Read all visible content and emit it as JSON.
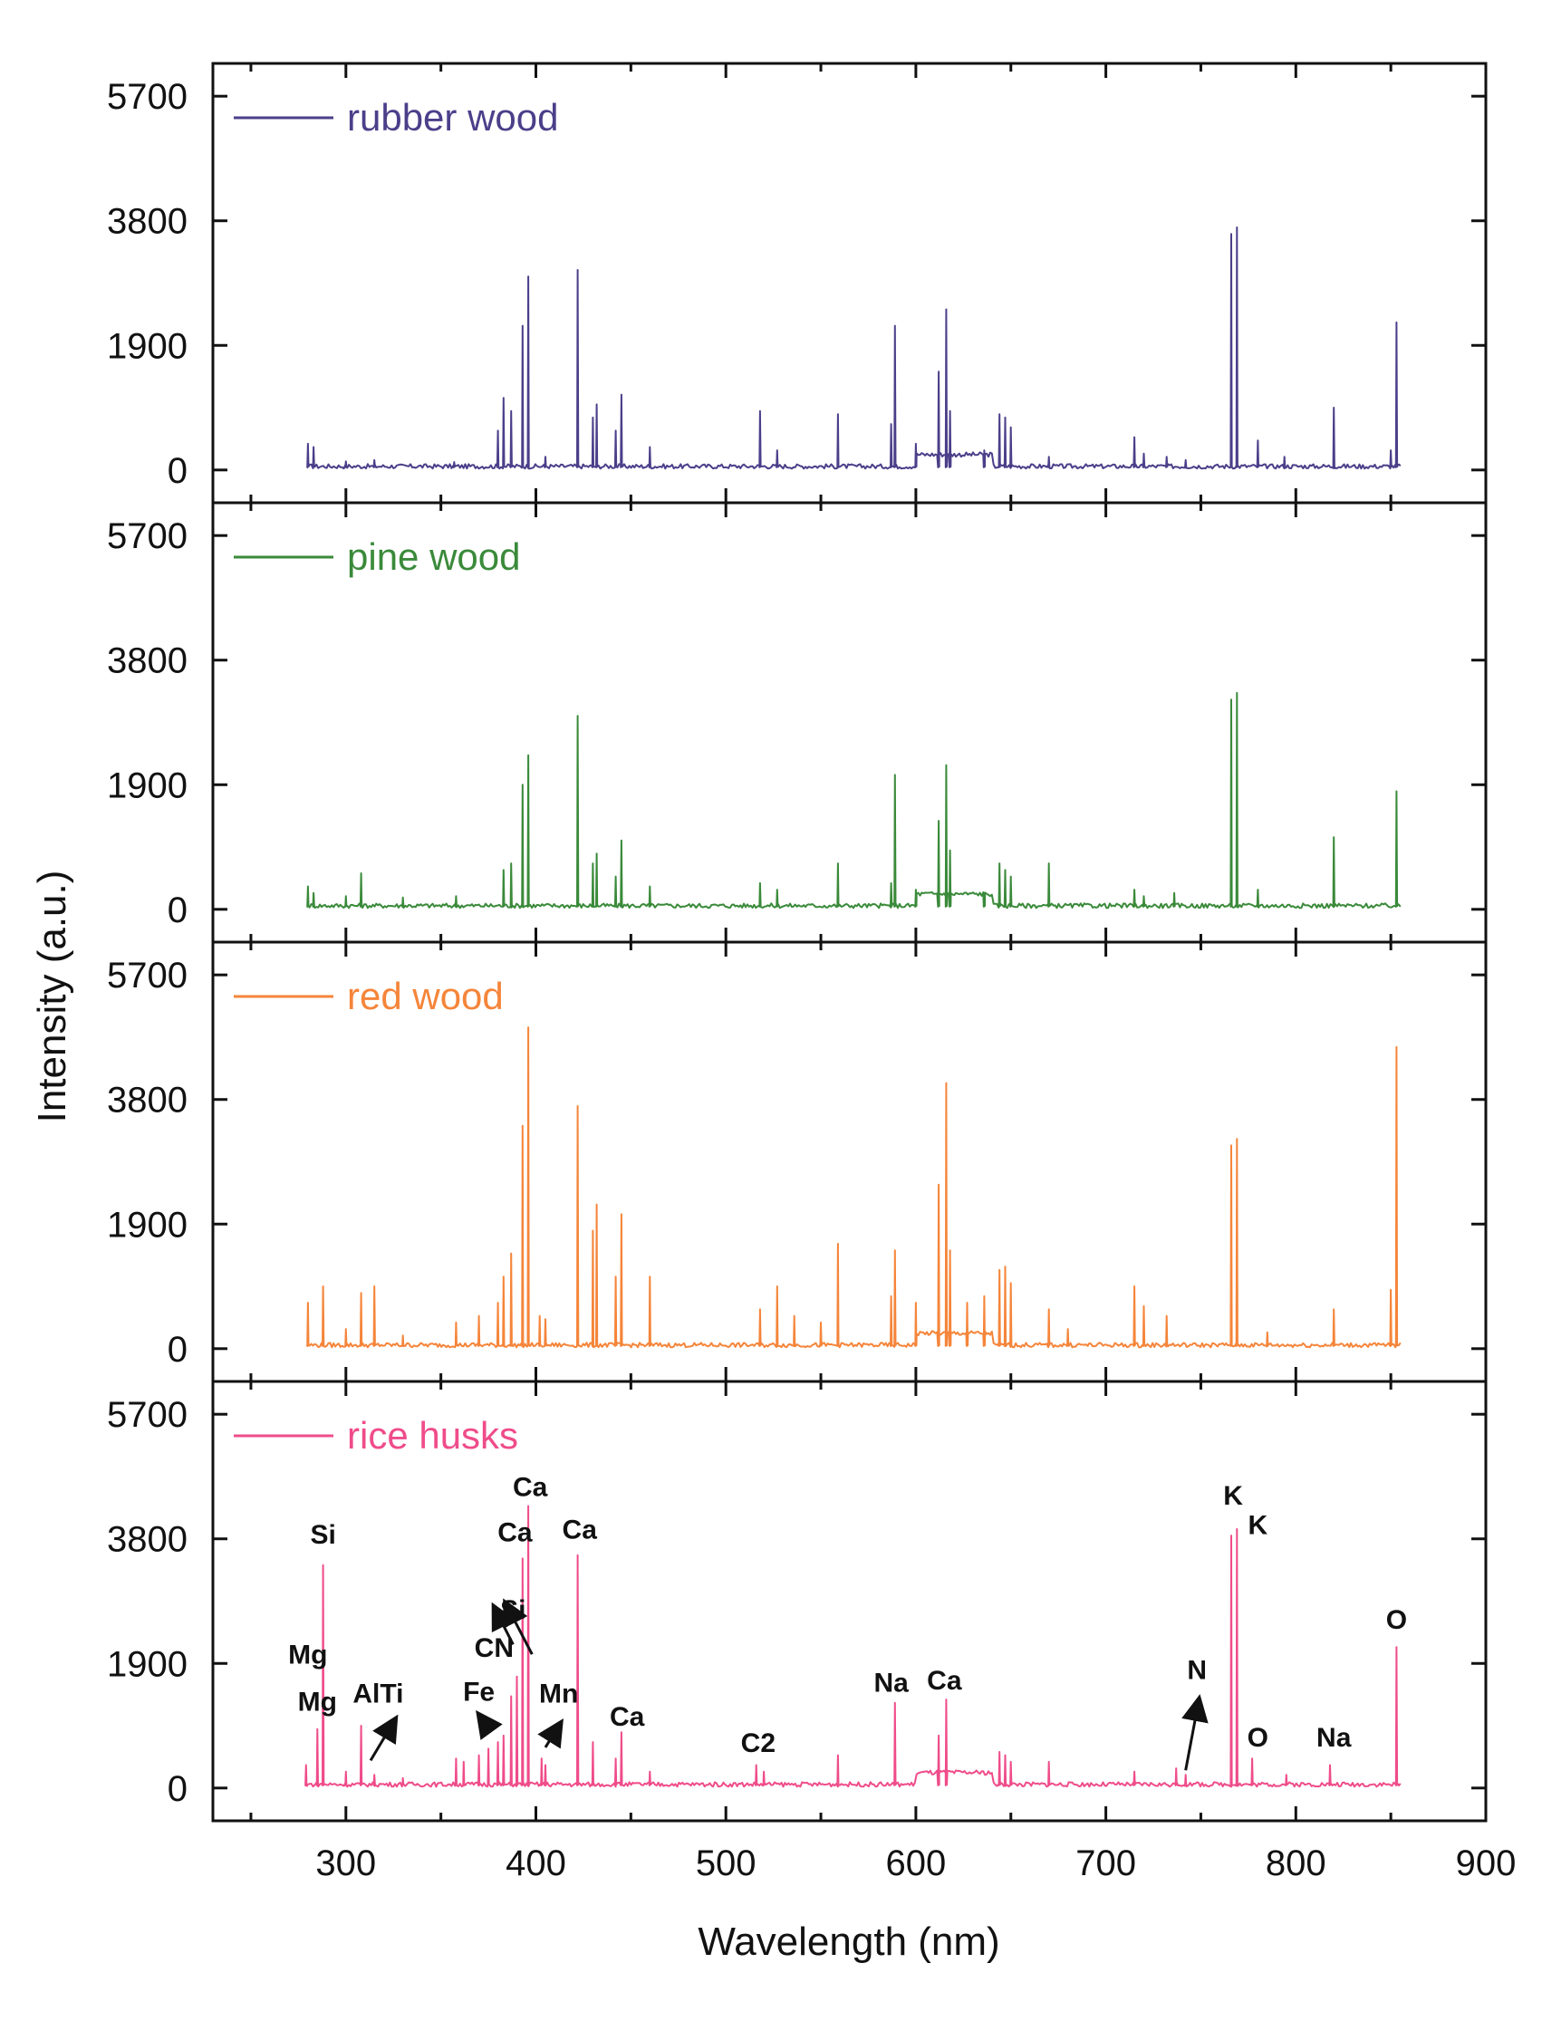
{
  "chart_data": {
    "type": "line",
    "xlabel": "Wavelength (nm)",
    "ylabel": "Intensity (a.u.)",
    "xlim": [
      230,
      900
    ],
    "ylim": [
      -500,
      6200
    ],
    "xticks": [
      "300",
      "400",
      "500",
      "600",
      "700",
      "800",
      "900"
    ],
    "xtick_values": [
      300,
      400,
      500,
      600,
      700,
      800,
      900
    ],
    "yticks": [
      "0",
      "1900",
      "3800",
      "5700"
    ],
    "ytick_values": [
      0,
      1900,
      3800,
      5700
    ],
    "x_range": [
      280,
      855
    ],
    "panels": [
      {
        "name": "rubber wood",
        "color": "#4b3f8a",
        "peaks": [
          [
            280,
            400
          ],
          [
            283,
            350
          ],
          [
            300,
            130
          ],
          [
            315,
            150
          ],
          [
            357,
            120
          ],
          [
            380,
            600
          ],
          [
            383,
            1100
          ],
          [
            387,
            900
          ],
          [
            393,
            2200
          ],
          [
            396,
            2950
          ],
          [
            405,
            200
          ],
          [
            422,
            3050
          ],
          [
            430,
            800
          ],
          [
            432,
            1000
          ],
          [
            442,
            600
          ],
          [
            445,
            1150
          ],
          [
            460,
            350
          ],
          [
            518,
            900
          ],
          [
            527,
            300
          ],
          [
            559,
            850
          ],
          [
            587,
            700
          ],
          [
            589,
            2200
          ],
          [
            600,
            400
          ],
          [
            612,
            1500
          ],
          [
            616,
            2450
          ],
          [
            618,
            900
          ],
          [
            636,
            300
          ],
          [
            644,
            850
          ],
          [
            647,
            800
          ],
          [
            650,
            650
          ],
          [
            670,
            200
          ],
          [
            715,
            500
          ],
          [
            720,
            250
          ],
          [
            732,
            200
          ],
          [
            742,
            150
          ],
          [
            766,
            3600
          ],
          [
            769,
            3700
          ],
          [
            780,
            450
          ],
          [
            794,
            200
          ],
          [
            820,
            950
          ],
          [
            850,
            300
          ],
          [
            853,
            2250
          ]
        ]
      },
      {
        "name": "pine wood",
        "color": "#3a8a3a",
        "peaks": [
          [
            280,
            350
          ],
          [
            283,
            250
          ],
          [
            300,
            200
          ],
          [
            308,
            550
          ],
          [
            330,
            180
          ],
          [
            358,
            200
          ],
          [
            383,
            600
          ],
          [
            387,
            700
          ],
          [
            393,
            1900
          ],
          [
            396,
            2350
          ],
          [
            422,
            2950
          ],
          [
            430,
            700
          ],
          [
            432,
            850
          ],
          [
            442,
            500
          ],
          [
            445,
            1050
          ],
          [
            460,
            350
          ],
          [
            518,
            400
          ],
          [
            527,
            300
          ],
          [
            559,
            700
          ],
          [
            587,
            400
          ],
          [
            589,
            2050
          ],
          [
            600,
            300
          ],
          [
            612,
            1350
          ],
          [
            616,
            2200
          ],
          [
            618,
            900
          ],
          [
            636,
            250
          ],
          [
            644,
            700
          ],
          [
            647,
            600
          ],
          [
            650,
            500
          ],
          [
            670,
            700
          ],
          [
            715,
            300
          ],
          [
            720,
            200
          ],
          [
            736,
            250
          ],
          [
            766,
            3200
          ],
          [
            769,
            3300
          ],
          [
            780,
            300
          ],
          [
            820,
            1100
          ],
          [
            853,
            1800
          ]
        ]
      },
      {
        "name": "red wood",
        "color": "#f5853a",
        "peaks": [
          [
            280,
            700
          ],
          [
            288,
            950
          ],
          [
            300,
            300
          ],
          [
            308,
            850
          ],
          [
            315,
            950
          ],
          [
            330,
            200
          ],
          [
            358,
            400
          ],
          [
            370,
            500
          ],
          [
            380,
            700
          ],
          [
            383,
            1100
          ],
          [
            387,
            1450
          ],
          [
            393,
            3400
          ],
          [
            396,
            4900
          ],
          [
            402,
            500
          ],
          [
            405,
            450
          ],
          [
            422,
            3700
          ],
          [
            430,
            1800
          ],
          [
            432,
            2200
          ],
          [
            442,
            1100
          ],
          [
            445,
            2050
          ],
          [
            460,
            1100
          ],
          [
            518,
            600
          ],
          [
            527,
            950
          ],
          [
            536,
            500
          ],
          [
            550,
            400
          ],
          [
            559,
            1600
          ],
          [
            587,
            800
          ],
          [
            589,
            1500
          ],
          [
            600,
            700
          ],
          [
            612,
            2500
          ],
          [
            616,
            4050
          ],
          [
            618,
            1500
          ],
          [
            627,
            700
          ],
          [
            636,
            800
          ],
          [
            644,
            1200
          ],
          [
            647,
            1250
          ],
          [
            650,
            1000
          ],
          [
            670,
            600
          ],
          [
            680,
            300
          ],
          [
            715,
            950
          ],
          [
            720,
            650
          ],
          [
            732,
            500
          ],
          [
            766,
            3100
          ],
          [
            769,
            3200
          ],
          [
            785,
            250
          ],
          [
            820,
            600
          ],
          [
            850,
            900
          ],
          [
            853,
            4600
          ]
        ]
      },
      {
        "name": "rice husks",
        "color": "#ef4c8a",
        "peaks": [
          [
            279,
            350
          ],
          [
            285,
            900
          ],
          [
            288,
            3400
          ],
          [
            300,
            250
          ],
          [
            308,
            950
          ],
          [
            315,
            200
          ],
          [
            330,
            150
          ],
          [
            358,
            450
          ],
          [
            362,
            400
          ],
          [
            370,
            500
          ],
          [
            375,
            600
          ],
          [
            380,
            700
          ],
          [
            383,
            800
          ],
          [
            387,
            1400
          ],
          [
            390,
            1700
          ],
          [
            393,
            3500
          ],
          [
            396,
            4300
          ],
          [
            403,
            450
          ],
          [
            405,
            350
          ],
          [
            422,
            3550
          ],
          [
            430,
            700
          ],
          [
            442,
            450
          ],
          [
            445,
            850
          ],
          [
            460,
            250
          ],
          [
            516,
            350
          ],
          [
            520,
            250
          ],
          [
            559,
            500
          ],
          [
            589,
            1300
          ],
          [
            612,
            800
          ],
          [
            616,
            1350
          ],
          [
            644,
            550
          ],
          [
            647,
            500
          ],
          [
            650,
            400
          ],
          [
            670,
            400
          ],
          [
            715,
            250
          ],
          [
            737,
            300
          ],
          [
            742,
            200
          ],
          [
            766,
            3850
          ],
          [
            769,
            3950
          ],
          [
            777,
            450
          ],
          [
            795,
            200
          ],
          [
            818,
            350
          ],
          [
            853,
            2150
          ]
        ],
        "annotations": [
          {
            "label": "Mg",
            "at": [
              280,
              1900
            ]
          },
          {
            "label": "Mg",
            "at": [
              285,
              1180
            ]
          },
          {
            "label": "Si",
            "at": [
              288,
              3730
            ]
          },
          {
            "label": "AlTi",
            "at": [
              317,
              1300
            ]
          },
          {
            "label": "CN",
            "at": [
              378,
              2000
            ]
          },
          {
            "label": "Si",
            "at": [
              388,
              2580
            ]
          },
          {
            "label": "Fe",
            "at": [
              370,
              1330
            ]
          },
          {
            "label": "Ca",
            "at": [
              389,
              3760
            ]
          },
          {
            "label": "Ca",
            "at": [
              397,
              4450
            ]
          },
          {
            "label": "Ca",
            "at": [
              423,
              3800
            ]
          },
          {
            "label": "Mn",
            "at": [
              412,
              1300
            ]
          },
          {
            "label": "Ca",
            "at": [
              448,
              950
            ]
          },
          {
            "label": "C2",
            "at": [
              517,
              550
            ]
          },
          {
            "label": "Na",
            "at": [
              587,
              1470
            ]
          },
          {
            "label": "Ca",
            "at": [
              615,
              1500
            ]
          },
          {
            "label": "N",
            "at": [
              748,
              1660
            ]
          },
          {
            "label": "K",
            "at": [
              767,
              4320
            ]
          },
          {
            "label": "K",
            "at": [
              780,
              3870
            ]
          },
          {
            "label": "O",
            "at": [
              780,
              630
            ]
          },
          {
            "label": "Na",
            "at": [
              820,
              630
            ]
          },
          {
            "label": "O",
            "at": [
              853,
              2430
            ]
          }
        ]
      }
    ],
    "arrows": [
      {
        "from": [
          313,
          420
        ],
        "to": [
          326,
          1050
        ]
      },
      {
        "from": [
          388,
          2190
        ],
        "to": [
          378,
          2760
        ]
      },
      {
        "from": [
          398,
          2040
        ],
        "to": [
          384,
          2820
        ]
      },
      {
        "from": [
          376,
          880
        ],
        "to": [
          370,
          1120
        ]
      },
      {
        "from": [
          405,
          620
        ],
        "to": [
          413,
          990
        ]
      },
      {
        "from": [
          742,
          270
        ],
        "to": [
          749,
          1350
        ]
      }
    ]
  }
}
